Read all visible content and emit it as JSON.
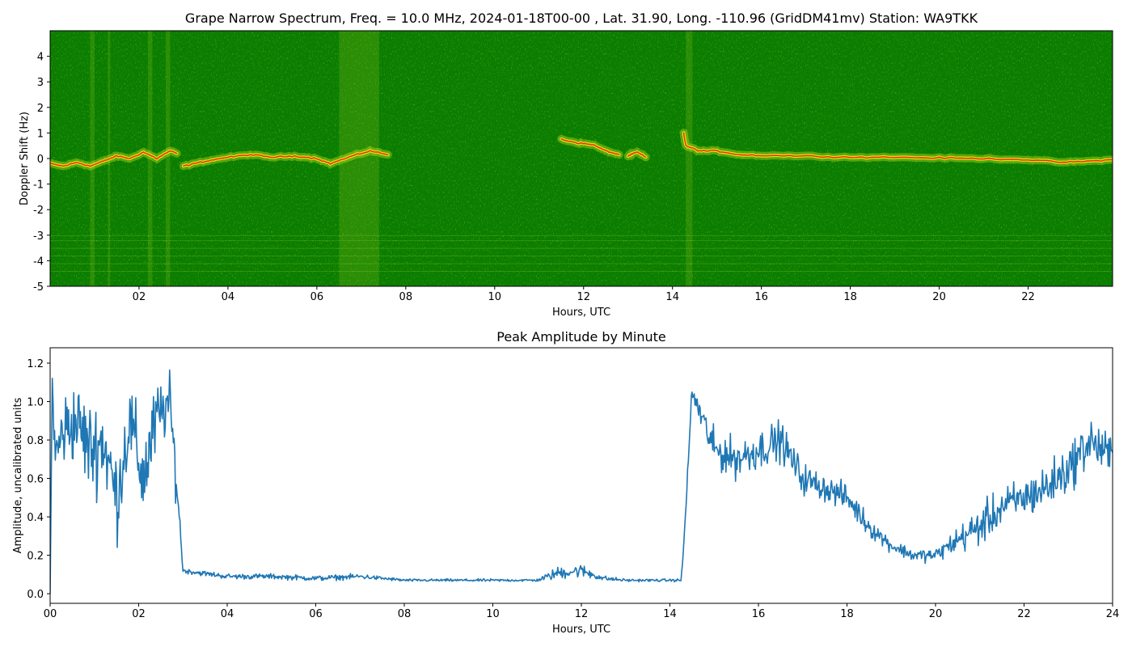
{
  "chart_data": [
    {
      "type": "heatmap",
      "title": "Grape Narrow Spectrum, Freq. = 10.0 MHz, 2024-01-18T00-00 , Lat.  31.90, Long. -110.96 (GridDM41mv) Station: WA9TKK",
      "xlabel": "Hours, UTC",
      "ylabel": "Doppler Shift (Hz)",
      "xlim": [
        0,
        23.9
      ],
      "ylim": [
        -5,
        5
      ],
      "x_tick_labels": [
        "02",
        "04",
        "06",
        "08",
        "10",
        "12",
        "14",
        "16",
        "18",
        "20",
        "22"
      ],
      "x_tick_values": [
        2,
        4,
        6,
        8,
        10,
        12,
        14,
        16,
        18,
        20,
        22
      ],
      "y_tick_values": [
        -5,
        -4,
        -3,
        -2,
        -1,
        0,
        1,
        2,
        3,
        4
      ],
      "colors": {
        "background": "#0a7d00",
        "mid": "#e8f020",
        "peak": "#ff2000"
      },
      "trace_segments": [
        {
          "name": "early",
          "points": [
            [
              0,
              -0.2
            ],
            [
              0.3,
              -0.3
            ],
            [
              0.6,
              -0.15
            ],
            [
              0.9,
              -0.3
            ],
            [
              1.2,
              -0.1
            ],
            [
              1.5,
              0.1
            ],
            [
              1.8,
              0.0
            ],
            [
              2.1,
              0.25
            ],
            [
              2.4,
              0.0
            ],
            [
              2.7,
              0.3
            ],
            [
              2.85,
              0.2
            ]
          ]
        },
        {
          "name": "night1",
          "points": [
            [
              3.0,
              -0.3
            ],
            [
              3.5,
              -0.1
            ],
            [
              4.0,
              0.05
            ],
            [
              4.5,
              0.15
            ],
            [
              5.0,
              0.05
            ],
            [
              5.5,
              0.1
            ],
            [
              6.0,
              0.0
            ],
            [
              6.3,
              -0.2
            ],
            [
              6.8,
              0.1
            ],
            [
              7.2,
              0.3
            ],
            [
              7.6,
              0.15
            ]
          ]
        },
        {
          "name": "mid",
          "points": [
            [
              11.5,
              0.75
            ],
            [
              11.9,
              0.6
            ],
            [
              12.2,
              0.55
            ],
            [
              12.5,
              0.3
            ],
            [
              12.8,
              0.15
            ]
          ]
        },
        {
          "name": "mid2",
          "points": [
            [
              13.0,
              0.1
            ],
            [
              13.2,
              0.25
            ],
            [
              13.4,
              0.05
            ]
          ]
        },
        {
          "name": "day",
          "points": [
            [
              14.25,
              1.0
            ],
            [
              14.3,
              0.5
            ],
            [
              14.6,
              0.3
            ],
            [
              15.0,
              0.3
            ],
            [
              15.5,
              0.15
            ],
            [
              16.0,
              0.12
            ],
            [
              17.0,
              0.1
            ],
            [
              18.0,
              0.05
            ],
            [
              19.0,
              0.05
            ],
            [
              20.0,
              0.02
            ],
            [
              21.0,
              0.0
            ],
            [
              22.0,
              -0.05
            ],
            [
              22.8,
              -0.15
            ],
            [
              23.4,
              -0.1
            ],
            [
              23.9,
              -0.05
            ]
          ]
        }
      ]
    },
    {
      "type": "line",
      "title": "Peak Amplitude by Minute",
      "xlabel": "Hours, UTC",
      "ylabel": "Amplitude, uncalibrated units",
      "xlim": [
        0,
        24
      ],
      "ylim": [
        -0.05,
        1.28
      ],
      "x_tick_labels": [
        "00",
        "02",
        "04",
        "06",
        "08",
        "10",
        "12",
        "14",
        "16",
        "18",
        "20",
        "22",
        "24"
      ],
      "x_tick_values": [
        0,
        2,
        4,
        6,
        8,
        10,
        12,
        14,
        16,
        18,
        20,
        22,
        24
      ],
      "y_tick_labels": [
        "0.0",
        "0.2",
        "0.4",
        "0.6",
        "0.8",
        "1.0",
        "1.2"
      ],
      "y_tick_values": [
        0,
        0.2,
        0.4,
        0.6,
        0.8,
        1.0,
        1.2
      ],
      "line_color": "#1f77b4",
      "envelope_hours": [
        0,
        0.05,
        0.1,
        0.3,
        0.6,
        0.9,
        1.2,
        1.5,
        1.8,
        2.1,
        2.4,
        2.7,
        2.85,
        2.95,
        3.0,
        4.0,
        5.0,
        6.0,
        7.0,
        8.0,
        9.0,
        10.0,
        11.0,
        11.5,
        12.0,
        12.5,
        13.0,
        14.0,
        14.25,
        14.3,
        14.5,
        15.0,
        15.5,
        16.0,
        16.5,
        17.0,
        17.5,
        18.0,
        18.5,
        19.0,
        19.5,
        20.0,
        20.5,
        21.0,
        21.5,
        22.0,
        22.5,
        23.0,
        23.5,
        24.0
      ],
      "envelope_values": [
        0.0,
        1.15,
        0.7,
        0.85,
        0.9,
        0.75,
        0.8,
        0.5,
        0.9,
        0.6,
        0.9,
        1.0,
        0.6,
        0.3,
        0.12,
        0.09,
        0.09,
        0.08,
        0.09,
        0.07,
        0.07,
        0.07,
        0.07,
        0.11,
        0.12,
        0.08,
        0.07,
        0.07,
        0.07,
        0.2,
        1.05,
        0.75,
        0.7,
        0.75,
        0.8,
        0.6,
        0.55,
        0.5,
        0.35,
        0.25,
        0.2,
        0.2,
        0.28,
        0.35,
        0.45,
        0.5,
        0.55,
        0.65,
        0.8,
        0.7
      ],
      "envelope_noise": [
        0.0,
        0.05,
        0.3,
        0.3,
        0.3,
        0.35,
        0.35,
        0.35,
        0.3,
        0.35,
        0.3,
        0.2,
        0.2,
        0.05,
        0.02,
        0.02,
        0.02,
        0.02,
        0.02,
        0.01,
        0.01,
        0.01,
        0.01,
        0.05,
        0.05,
        0.02,
        0.01,
        0.01,
        0.01,
        0.02,
        0.08,
        0.15,
        0.15,
        0.15,
        0.15,
        0.12,
        0.1,
        0.1,
        0.08,
        0.05,
        0.05,
        0.05,
        0.1,
        0.15,
        0.15,
        0.15,
        0.18,
        0.18,
        0.18,
        0.18
      ]
    }
  ]
}
